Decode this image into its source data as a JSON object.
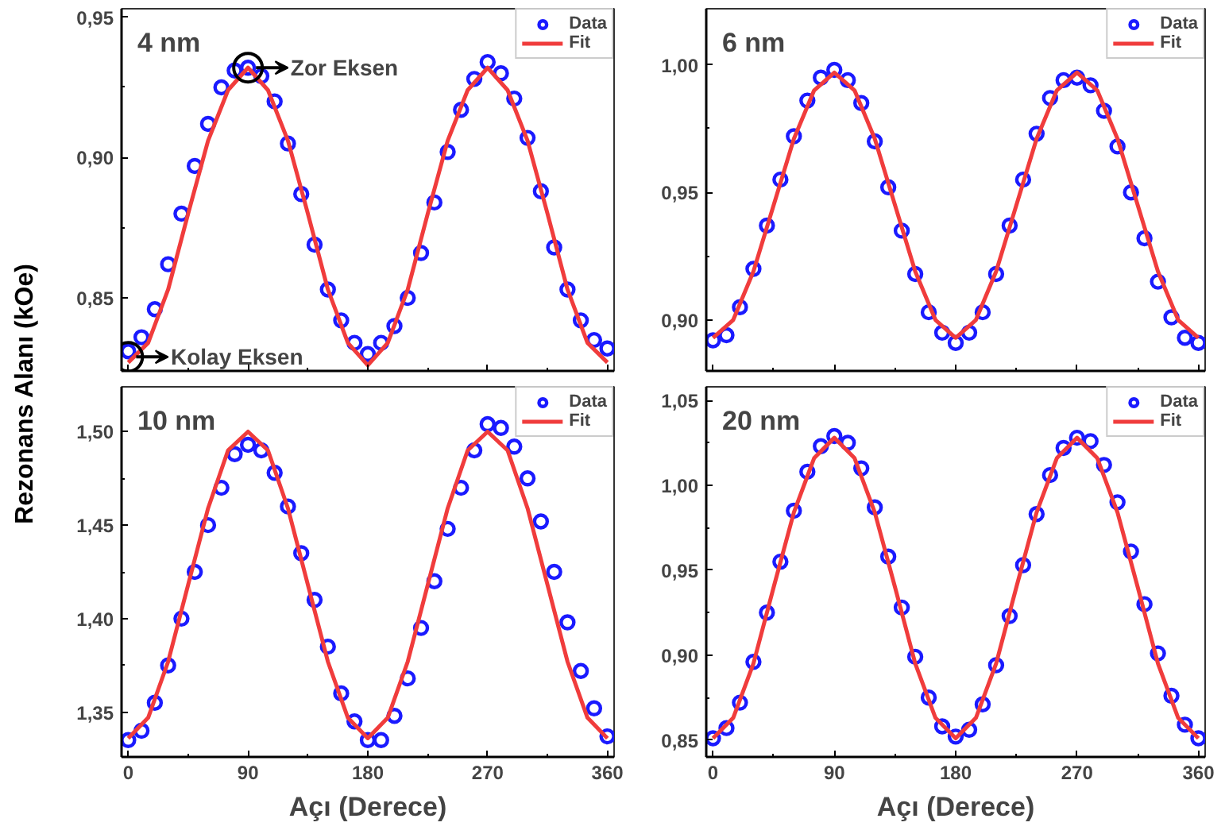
{
  "chart_data": [
    {
      "type": "scatter",
      "title": "4 nm",
      "ylabel": "Rezonans Alanı (kOe)",
      "xlim": [
        -5,
        365
      ],
      "xticks": [
        0,
        90,
        180,
        270,
        360
      ],
      "ylim": [
        0.824,
        0.953
      ],
      "yticks": [
        {
          "value": 0.85,
          "label": "0,85"
        },
        {
          "value": 0.9,
          "label": "0,90"
        },
        {
          "value": 0.95,
          "label": "0,95"
        }
      ],
      "tick_labels": "y",
      "grid": false,
      "legend": "top right",
      "annotations": [
        {
          "text": "Zor Eksen",
          "x": 90,
          "y": 0.932
        },
        {
          "text": "Kolay Eksen",
          "x": 0,
          "y": 0.829
        }
      ],
      "series": [
        {
          "name": "Data",
          "marker": "circle",
          "color": "#1a1aff",
          "x": [
            0,
            10,
            20,
            30,
            40,
            50,
            60,
            70,
            80,
            90,
            100,
            110,
            120,
            130,
            140,
            150,
            160,
            170,
            180,
            190,
            200,
            210,
            220,
            230,
            240,
            250,
            260,
            270,
            280,
            290,
            300,
            310,
            320,
            330,
            340,
            350,
            360
          ],
          "values": [
            0.831,
            0.836,
            0.846,
            0.862,
            0.88,
            0.897,
            0.912,
            0.925,
            0.931,
            0.932,
            0.929,
            0.92,
            0.905,
            0.887,
            0.869,
            0.853,
            0.842,
            0.834,
            0.83,
            0.834,
            0.84,
            0.85,
            0.866,
            0.884,
            0.902,
            0.917,
            0.928,
            0.934,
            0.93,
            0.921,
            0.907,
            0.888,
            0.868,
            0.853,
            0.842,
            0.835,
            0.832
          ]
        },
        {
          "name": "Fit",
          "type": "line",
          "color": "#f03c3c",
          "x": [
            0,
            15,
            30,
            45,
            60,
            75,
            90,
            105,
            120,
            135,
            150,
            165,
            180,
            195,
            210,
            225,
            240,
            255,
            270,
            285,
            300,
            315,
            330,
            345,
            360
          ],
          "values": [
            0.827,
            0.834,
            0.853,
            0.88,
            0.906,
            0.924,
            0.932,
            0.924,
            0.906,
            0.88,
            0.853,
            0.834,
            0.826,
            0.834,
            0.853,
            0.88,
            0.906,
            0.924,
            0.932,
            0.924,
            0.906,
            0.88,
            0.853,
            0.834,
            0.827
          ]
        }
      ]
    },
    {
      "type": "scatter",
      "title": "6 nm",
      "xlim": [
        -5,
        365
      ],
      "xticks": [
        0,
        90,
        180,
        270,
        360
      ],
      "ylim": [
        0.88,
        1.022
      ],
      "yticks": [
        {
          "value": 0.9,
          "label": "0,90"
        },
        {
          "value": 0.95,
          "label": "0,95"
        },
        {
          "value": 1.0,
          "label": "1,00"
        }
      ],
      "tick_labels": "y",
      "grid": false,
      "legend": "top right",
      "series": [
        {
          "name": "Data",
          "marker": "circle",
          "color": "#1a1aff",
          "x": [
            0,
            10,
            20,
            30,
            40,
            50,
            60,
            70,
            80,
            90,
            100,
            110,
            120,
            130,
            140,
            150,
            160,
            170,
            180,
            190,
            200,
            210,
            220,
            230,
            240,
            250,
            260,
            270,
            280,
            290,
            300,
            310,
            320,
            330,
            340,
            350,
            360
          ],
          "values": [
            0.892,
            0.894,
            0.905,
            0.92,
            0.937,
            0.955,
            0.972,
            0.986,
            0.995,
            0.998,
            0.994,
            0.985,
            0.97,
            0.952,
            0.935,
            0.918,
            0.903,
            0.895,
            0.891,
            0.895,
            0.903,
            0.918,
            0.937,
            0.955,
            0.973,
            0.987,
            0.994,
            0.995,
            0.992,
            0.982,
            0.968,
            0.95,
            0.932,
            0.915,
            0.901,
            0.893,
            0.891
          ]
        },
        {
          "name": "Fit",
          "type": "line",
          "color": "#f03c3c",
          "x": [
            0,
            15,
            30,
            45,
            60,
            75,
            90,
            105,
            120,
            135,
            150,
            165,
            180,
            195,
            210,
            225,
            240,
            255,
            270,
            285,
            300,
            315,
            330,
            345,
            360
          ],
          "values": [
            0.893,
            0.9,
            0.919,
            0.945,
            0.971,
            0.99,
            0.997,
            0.99,
            0.971,
            0.945,
            0.919,
            0.9,
            0.893,
            0.9,
            0.919,
            0.945,
            0.971,
            0.99,
            0.997,
            0.99,
            0.971,
            0.945,
            0.919,
            0.9,
            0.893
          ]
        }
      ]
    },
    {
      "type": "scatter",
      "title": "10 nm",
      "xlabel": "Açı (Derece)",
      "xlim": [
        -5,
        365
      ],
      "xticks": [
        0,
        90,
        180,
        270,
        360
      ],
      "ylim": [
        1.326,
        1.524
      ],
      "yticks": [
        {
          "value": 1.35,
          "label": "1,35"
        },
        {
          "value": 1.4,
          "label": "1,40"
        },
        {
          "value": 1.45,
          "label": "1,45"
        },
        {
          "value": 1.5,
          "label": "1,50"
        }
      ],
      "grid": false,
      "legend": "top right",
      "series": [
        {
          "name": "Data",
          "marker": "circle",
          "color": "#1a1aff",
          "x": [
            0,
            10,
            20,
            30,
            40,
            50,
            60,
            70,
            80,
            90,
            100,
            110,
            120,
            130,
            140,
            150,
            160,
            170,
            180,
            190,
            200,
            210,
            220,
            230,
            240,
            250,
            260,
            270,
            280,
            290,
            300,
            310,
            320,
            330,
            340,
            350,
            360
          ],
          "values": [
            1.335,
            1.34,
            1.355,
            1.375,
            1.4,
            1.425,
            1.45,
            1.47,
            1.488,
            1.493,
            1.49,
            1.478,
            1.46,
            1.435,
            1.41,
            1.385,
            1.36,
            1.345,
            1.335,
            1.335,
            1.348,
            1.368,
            1.395,
            1.42,
            1.448,
            1.47,
            1.49,
            1.504,
            1.502,
            1.492,
            1.475,
            1.452,
            1.425,
            1.398,
            1.372,
            1.352,
            1.337
          ]
        },
        {
          "name": "Fit",
          "type": "line",
          "color": "#f03c3c",
          "x": [
            0,
            15,
            30,
            45,
            60,
            75,
            90,
            105,
            120,
            135,
            150,
            165,
            180,
            195,
            210,
            225,
            240,
            255,
            270,
            285,
            300,
            315,
            330,
            345,
            360
          ],
          "values": [
            1.336,
            1.347,
            1.377,
            1.418,
            1.459,
            1.49,
            1.5,
            1.49,
            1.459,
            1.418,
            1.377,
            1.347,
            1.336,
            1.347,
            1.377,
            1.418,
            1.459,
            1.49,
            1.5,
            1.49,
            1.459,
            1.418,
            1.377,
            1.347,
            1.336
          ]
        }
      ]
    },
    {
      "type": "scatter",
      "title": "20 nm",
      "xlabel": "Açı (Derece)",
      "xlim": [
        -5,
        365
      ],
      "xticks": [
        0,
        90,
        180,
        270,
        360
      ],
      "ylim": [
        0.84,
        1.058
      ],
      "yticks": [
        {
          "value": 0.85,
          "label": "0,85"
        },
        {
          "value": 0.9,
          "label": "0,90"
        },
        {
          "value": 0.95,
          "label": "0,95"
        },
        {
          "value": 1.0,
          "label": "1,00"
        },
        {
          "value": 1.05,
          "label": "1,05"
        }
      ],
      "grid": false,
      "legend": "top right",
      "series": [
        {
          "name": "Data",
          "marker": "circle",
          "color": "#1a1aff",
          "x": [
            0,
            10,
            20,
            30,
            40,
            50,
            60,
            70,
            80,
            90,
            100,
            110,
            120,
            130,
            140,
            150,
            160,
            170,
            180,
            190,
            200,
            210,
            220,
            230,
            240,
            250,
            260,
            270,
            280,
            290,
            300,
            310,
            320,
            330,
            340,
            350,
            360
          ],
          "values": [
            0.851,
            0.857,
            0.872,
            0.896,
            0.925,
            0.955,
            0.985,
            1.008,
            1.023,
            1.029,
            1.025,
            1.01,
            0.987,
            0.958,
            0.928,
            0.899,
            0.875,
            0.858,
            0.852,
            0.856,
            0.871,
            0.894,
            0.923,
            0.953,
            0.983,
            1.006,
            1.022,
            1.028,
            1.026,
            1.012,
            0.99,
            0.961,
            0.93,
            0.901,
            0.876,
            0.859,
            0.851
          ]
        },
        {
          "name": "Fit",
          "type": "line",
          "color": "#f03c3c",
          "x": [
            0,
            15,
            30,
            45,
            60,
            75,
            90,
            105,
            120,
            135,
            150,
            165,
            180,
            195,
            210,
            225,
            240,
            255,
            270,
            285,
            300,
            315,
            330,
            345,
            360
          ],
          "values": [
            0.851,
            0.863,
            0.895,
            0.94,
            0.984,
            1.016,
            1.028,
            1.016,
            0.984,
            0.94,
            0.895,
            0.863,
            0.851,
            0.863,
            0.895,
            0.94,
            0.984,
            1.016,
            1.028,
            1.016,
            0.984,
            0.94,
            0.895,
            0.863,
            0.851
          ]
        }
      ]
    }
  ]
}
